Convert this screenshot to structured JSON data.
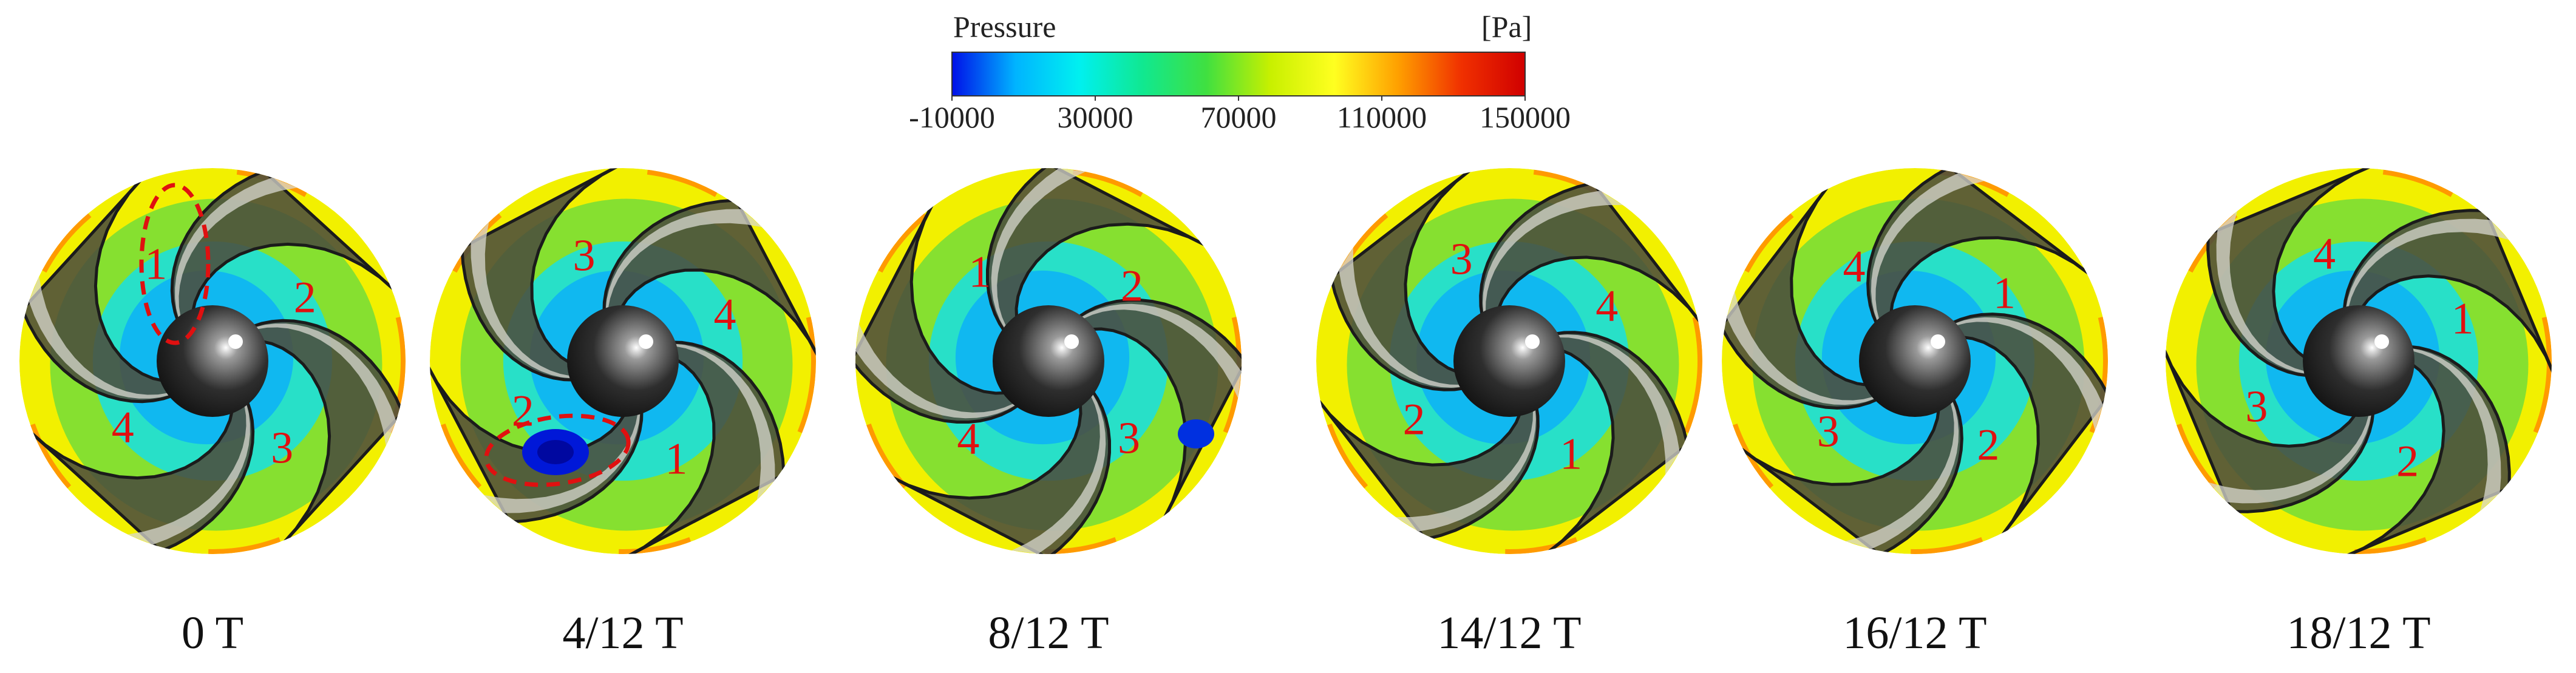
{
  "colorbar": {
    "title": "Pressure",
    "unit": "[Pa]",
    "ticks": [
      "-10000",
      "30000",
      "70000",
      "110000",
      "150000"
    ],
    "range": [
      -10000,
      150000
    ],
    "colors": [
      "#0010e8",
      "#00b4ff",
      "#00f0f0",
      "#10e890",
      "#40e040",
      "#c8f000",
      "#ffff20",
      "#ffa000",
      "#f03000",
      "#d00000"
    ]
  },
  "panels": [
    {
      "label": "0 T",
      "blades": [
        "1",
        "2",
        "3",
        "4"
      ]
    },
    {
      "label": "4/12 T",
      "blades": [
        "3",
        "4",
        "1",
        "2"
      ]
    },
    {
      "label": "8/12 T",
      "blades": [
        "1",
        "2",
        "3",
        "4"
      ]
    },
    {
      "label": "14/12 T",
      "blades": [
        "3",
        "4",
        "1",
        "2"
      ]
    },
    {
      "label": "16/12 T",
      "blades": [
        "4",
        "1",
        "2",
        "3"
      ]
    },
    {
      "label": "18/12 T",
      "blades": [
        "4",
        "1",
        "2",
        "3"
      ]
    }
  ],
  "colors": {
    "annotation": "#e01010",
    "rim": "#f5f500",
    "blade": "#4a4a3a",
    "hub": "#2a2a2a"
  }
}
